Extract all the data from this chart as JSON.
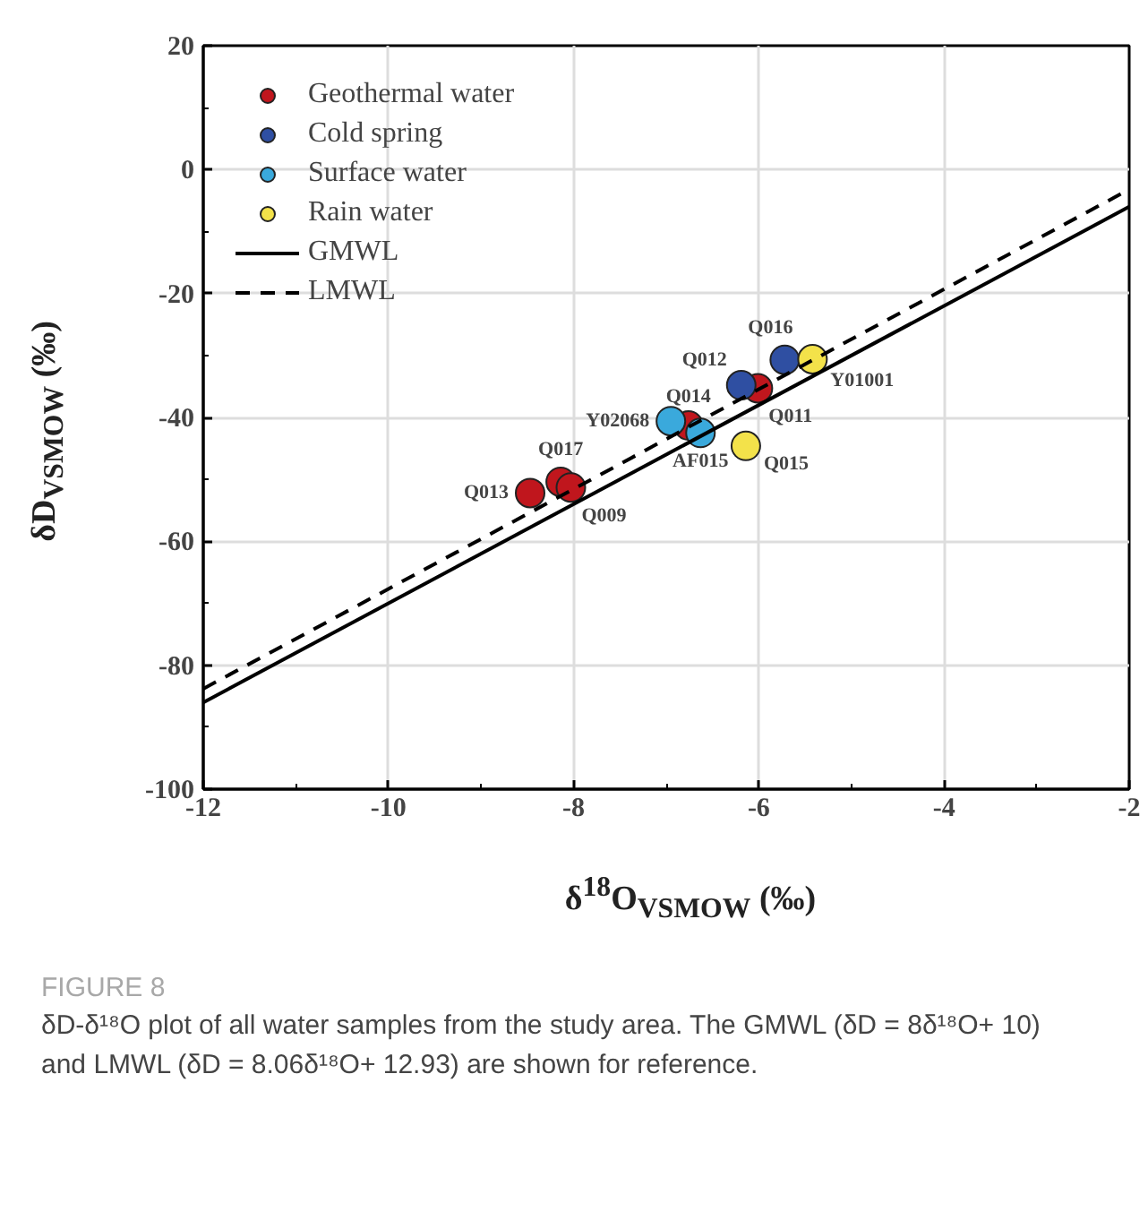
{
  "chart_data": {
    "type": "scatter",
    "title": "FIGURE 8",
    "subtitle": "δD-δ¹⁸O plot of all water samples from the study area. The GMWL (δD = 8δ¹⁸O+ 10) and LMWL (δD = 8.06δ¹⁸O+ 12.93) are shown for reference.",
    "xlabel": "δ$^{18}$O$_{VSMOW}$ (‰)",
    "ylabel": "δD$_{VSMOW}$ (‰)",
    "xlim": [
      -12,
      -2
    ],
    "ylim": [
      -100,
      20
    ],
    "xticks": [
      -12,
      -10,
      -8,
      -6,
      -4,
      -2
    ],
    "yticks": [
      -100,
      -80,
      -60,
      -40,
      -20,
      0,
      20
    ],
    "grid": true,
    "legend": "top left",
    "marker": "circle",
    "series": [
      {
        "name": "Geothermal water",
        "color": "#c0161d",
        "x": [
          -8.47,
          -8.14,
          -8.03,
          -6.76,
          -6.01
        ],
        "values": [
          -52.2,
          -50.4,
          -51.3,
          -41.3,
          -35.3
        ]
      },
      {
        "name": "Cold spring",
        "color": "#2f4fa2",
        "x": [
          -6.19,
          -5.72
        ],
        "values": [
          -34.8,
          -30.7
        ]
      },
      {
        "name": "Surface water",
        "color": "#3aa9dc",
        "x": [
          -6.95,
          -6.63
        ],
        "values": [
          -40.6,
          -42.5
        ]
      },
      {
        "name": "Rain water",
        "color": "#f3e24a",
        "x": [
          -5.42,
          -6.14
        ],
        "values": [
          -30.6,
          -44.6
        ]
      },
      {
        "name": "GMWL",
        "type": "line",
        "line_style": "solid",
        "marker": "none",
        "color": "#000000",
        "x": [
          -12,
          -2
        ],
        "values": [
          -86,
          -6
        ]
      },
      {
        "name": "LMWL",
        "type": "line",
        "line_style": "dashed",
        "marker": "none",
        "color": "#000000",
        "x": [
          -12,
          -2
        ],
        "values": [
          -83.8,
          -3.2
        ]
      }
    ],
    "annotations": [
      {
        "text": "Q013",
        "x": -8.47,
        "y": -52.2
      },
      {
        "text": "Q017",
        "x": -8.14,
        "y": -50.4
      },
      {
        "text": "Q009",
        "x": -8.03,
        "y": -51.3
      },
      {
        "text": "Q014",
        "x": -6.76,
        "y": -41.3
      },
      {
        "text": "Q011",
        "x": -6.01,
        "y": -35.3
      },
      {
        "text": "Q012",
        "x": -6.19,
        "y": -34.8
      },
      {
        "text": "Q016",
        "x": -5.72,
        "y": -30.7
      },
      {
        "text": "Y02068",
        "x": -6.95,
        "y": -40.6
      },
      {
        "text": "AF015",
        "x": -6.63,
        "y": -42.5
      },
      {
        "text": "Y01001",
        "x": -5.42,
        "y": -30.6
      },
      {
        "text": "Q015",
        "x": -6.14,
        "y": -44.6
      }
    ]
  }
}
